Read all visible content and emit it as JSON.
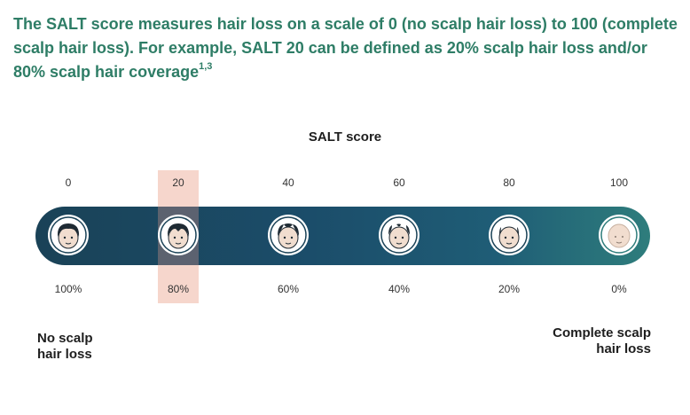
{
  "intro": {
    "text": "The SALT score measures hair loss on a scale of 0 (no scalp hair loss) to 100 (complete scalp hair loss). For example, SALT 20 can be defined as 20% scalp hair loss and/or 80% scalp hair coverage",
    "superscript": "1,3"
  },
  "scale": {
    "title": "SALT score",
    "highlighted_score": "20",
    "points": [
      {
        "score": "0",
        "coverage": "100%",
        "face": "face-full-hair-icon"
      },
      {
        "score": "20",
        "coverage": "80%",
        "face": "face-mostly-full-hair-icon"
      },
      {
        "score": "40",
        "coverage": "60%",
        "face": "face-moderate-hair-loss-icon"
      },
      {
        "score": "60",
        "coverage": "40%",
        "face": "face-significant-hair-loss-icon"
      },
      {
        "score": "80",
        "coverage": "20%",
        "face": "face-severe-hair-loss-icon"
      },
      {
        "score": "100",
        "coverage": "0%",
        "face": "face-bald-icon"
      }
    ],
    "left_end_label": [
      "No scalp",
      "hair loss"
    ],
    "right_end_label": [
      "Complete scalp",
      "hair loss"
    ]
  },
  "colors": {
    "intro_text": "#2e7d66",
    "highlight": "#f5cfc3",
    "bar_start": "#1a4257",
    "bar_end": "#2e7d7c"
  }
}
